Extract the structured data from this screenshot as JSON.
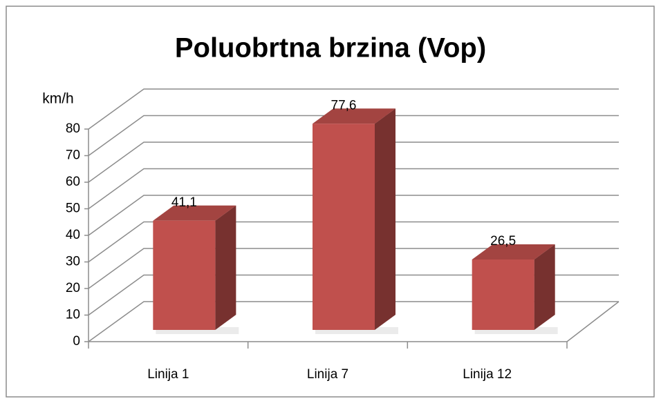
{
  "chart_data": {
    "type": "bar3d",
    "title": "Poluobrtna brzina (Vop)",
    "y_label": "km/h",
    "categories": [
      "Linija 1",
      "Linija 7",
      "Linija 12"
    ],
    "values": [
      41.1,
      77.6,
      26.5
    ],
    "value_labels": [
      "41,1",
      "77,6",
      "26,5"
    ],
    "color": "#c0504d",
    "ylim": [
      0,
      80
    ],
    "yticks": [
      0,
      10,
      20,
      30,
      40,
      50,
      60,
      70,
      80
    ],
    "grid": true
  }
}
